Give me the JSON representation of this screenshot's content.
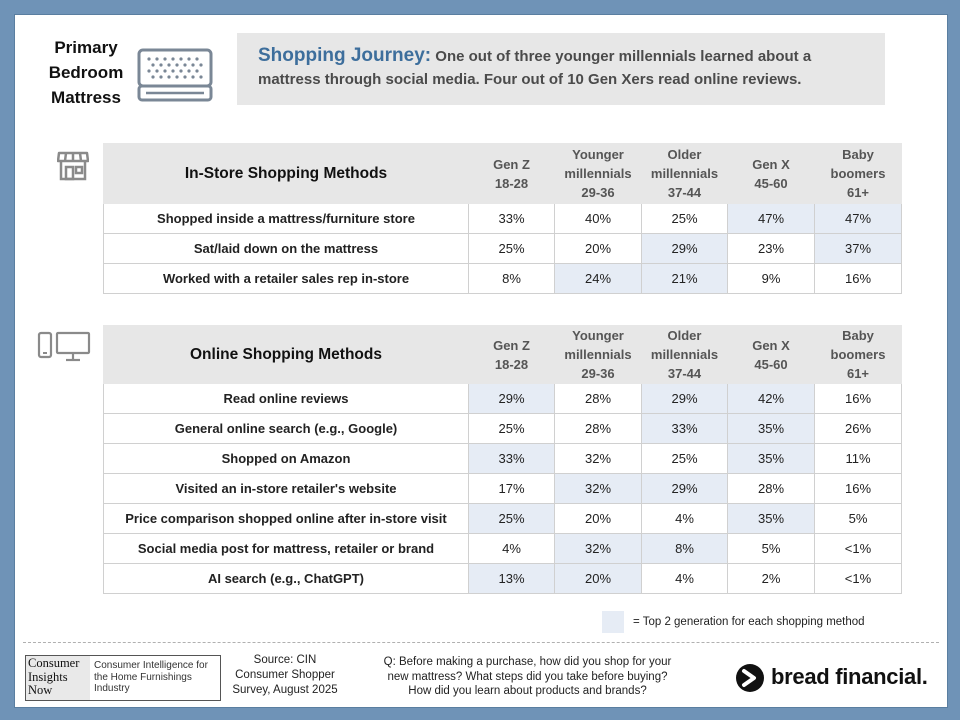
{
  "product_title": [
    "Primary",
    "Bedroom",
    "Mattress"
  ],
  "headline": {
    "lead": "Shopping Journey:",
    "text": " One out of three younger millennials learned about a mattress through social media. Four out of 10 Gen Xers read online reviews."
  },
  "columns": [
    {
      "line1": "",
      "line2": "Gen Z",
      "line3": "18-28"
    },
    {
      "line1": "Younger",
      "line2": "millennials",
      "line3": "29-36"
    },
    {
      "line1": "Older",
      "line2": "millennials",
      "line3": "37-44"
    },
    {
      "line1": "",
      "line2": "Gen X",
      "line3": "45-60"
    },
    {
      "line1": "Baby",
      "line2": "boomers",
      "line3": "61+"
    }
  ],
  "instore": {
    "title": "In-Store Shopping Methods",
    "rows": [
      {
        "label": "Shopped inside a mattress/furniture store",
        "values": [
          "33%",
          "40%",
          "25%",
          "47%",
          "47%"
        ],
        "highlight": [
          false,
          false,
          false,
          true,
          true
        ]
      },
      {
        "label": "Sat/laid down on the mattress",
        "values": [
          "25%",
          "20%",
          "29%",
          "23%",
          "37%"
        ],
        "highlight": [
          false,
          false,
          true,
          false,
          true
        ]
      },
      {
        "label": "Worked with a retailer sales rep in-store",
        "values": [
          "8%",
          "24%",
          "21%",
          "9%",
          "16%"
        ],
        "highlight": [
          false,
          true,
          true,
          false,
          false
        ]
      }
    ]
  },
  "online": {
    "title": "Online Shopping Methods",
    "rows": [
      {
        "label": "Read online reviews",
        "values": [
          "29%",
          "28%",
          "29%",
          "42%",
          "16%"
        ],
        "highlight": [
          true,
          false,
          true,
          true,
          false
        ]
      },
      {
        "label": "General online search (e.g., Google)",
        "values": [
          "25%",
          "28%",
          "33%",
          "35%",
          "26%"
        ],
        "highlight": [
          false,
          false,
          true,
          true,
          false
        ]
      },
      {
        "label": "Shopped on Amazon",
        "values": [
          "33%",
          "32%",
          "25%",
          "35%",
          "11%"
        ],
        "highlight": [
          true,
          false,
          false,
          true,
          false
        ]
      },
      {
        "label": "Visited an in-store retailer's website",
        "values": [
          "17%",
          "32%",
          "29%",
          "28%",
          "16%"
        ],
        "highlight": [
          false,
          true,
          true,
          false,
          false
        ]
      },
      {
        "label": "Price comparison shopped online after in-store visit",
        "values": [
          "25%",
          "20%",
          "4%",
          "35%",
          "5%"
        ],
        "highlight": [
          true,
          false,
          false,
          true,
          false
        ]
      },
      {
        "label": "Social media post for mattress, retailer or brand",
        "values": [
          "4%",
          "32%",
          "8%",
          "5%",
          "<1%"
        ],
        "highlight": [
          false,
          true,
          true,
          false,
          false
        ]
      },
      {
        "label": "AI search (e.g., ChatGPT)",
        "values": [
          "13%",
          "20%",
          "4%",
          "2%",
          "<1%"
        ],
        "highlight": [
          true,
          true,
          false,
          false,
          false
        ]
      }
    ]
  },
  "legend": "= Top 2 generation for each shopping method",
  "footer": {
    "cin_logo": [
      "Consumer",
      "Insights",
      "Now"
    ],
    "cin_desc": "Consumer Intelligence for the Home Furnishings Industry",
    "source": [
      "Source: CIN",
      "Consumer Shopper",
      "Survey, August 2025"
    ],
    "question": "Q: Before making a purchase, how did you shop for your new mattress? What steps did you take before buying? How did you learn about products and brands?",
    "brand": "bread financial."
  },
  "icons": {
    "mattress": "mattress-icon",
    "store": "storefront-icon",
    "phone": "smartphone-icon",
    "monitor": "desktop-monitor-icon",
    "brand_mark": "bread-logo-mark-icon"
  },
  "colors": {
    "background": "#6f93b7",
    "headline_accent": "#3d6e9c",
    "highlight": "#e6ecf5",
    "header_gray": "#e7e7e7"
  }
}
